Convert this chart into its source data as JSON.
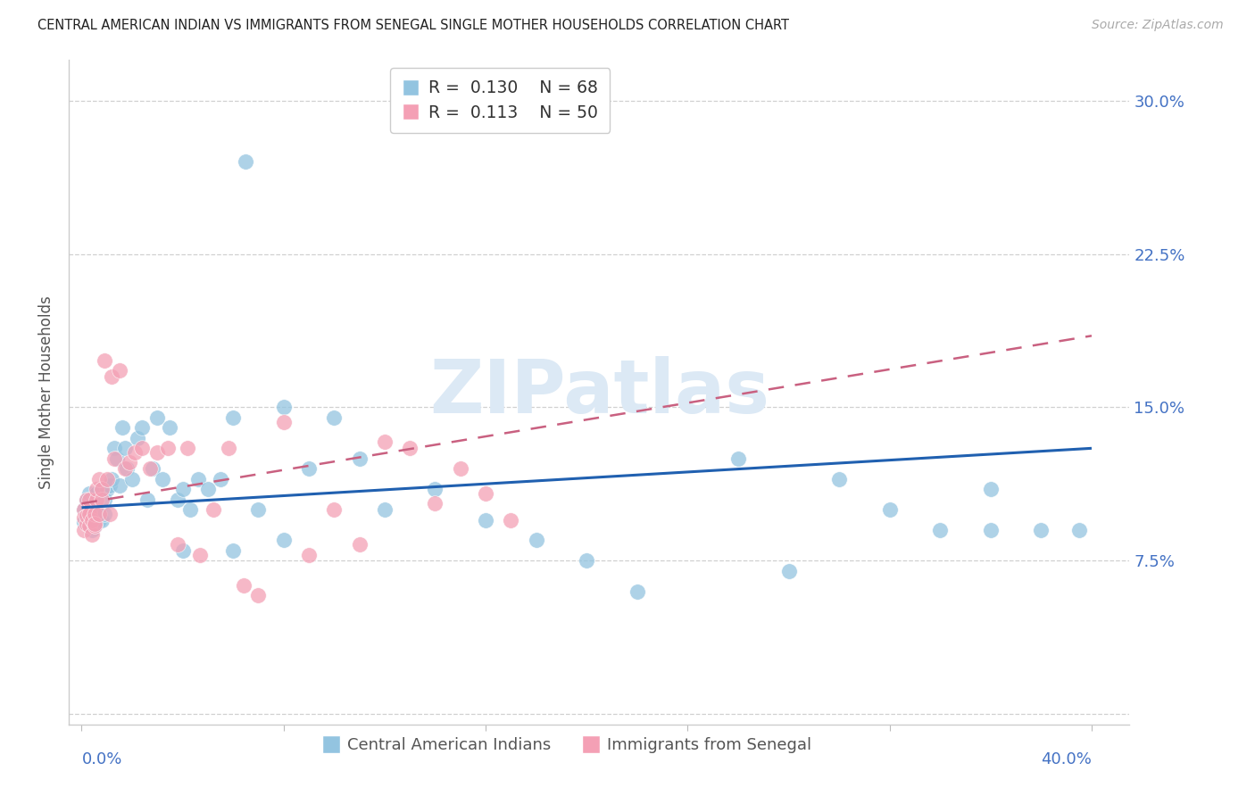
{
  "title": "CENTRAL AMERICAN INDIAN VS IMMIGRANTS FROM SENEGAL SINGLE MOTHER HOUSEHOLDS CORRELATION CHART",
  "source": "Source: ZipAtlas.com",
  "ylabel": "Single Mother Households",
  "ytick_vals": [
    0.0,
    0.075,
    0.15,
    0.225,
    0.3
  ],
  "ytick_labels": [
    "",
    "7.5%",
    "15.0%",
    "22.5%",
    "30.0%"
  ],
  "xtick_vals": [
    0.0,
    0.08,
    0.16,
    0.24,
    0.32,
    0.4
  ],
  "xlim": [
    -0.005,
    0.415
  ],
  "ylim": [
    -0.005,
    0.32
  ],
  "legend1_R": "0.130",
  "legend1_N": "68",
  "legend2_R": "0.113",
  "legend2_N": "50",
  "color_blue": "#93c4e0",
  "color_pink": "#f4a0b5",
  "trendline_blue": "#2060b0",
  "trendline_pink": "#c96080",
  "watermark": "ZIPatlas",
  "blue_trendline_pts": [
    [
      0.0,
      0.101
    ],
    [
      0.4,
      0.13
    ]
  ],
  "pink_trendline_pts": [
    [
      0.0,
      0.103
    ],
    [
      0.4,
      0.185
    ]
  ],
  "blue_x": [
    0.001,
    0.001,
    0.002,
    0.002,
    0.003,
    0.003,
    0.004,
    0.004,
    0.004,
    0.005,
    0.005,
    0.005,
    0.006,
    0.006,
    0.007,
    0.007,
    0.008,
    0.008,
    0.009,
    0.009,
    0.01,
    0.011,
    0.012,
    0.013,
    0.014,
    0.015,
    0.016,
    0.017,
    0.018,
    0.02,
    0.022,
    0.024,
    0.026,
    0.028,
    0.03,
    0.032,
    0.035,
    0.038,
    0.04,
    0.043,
    0.046,
    0.05,
    0.055,
    0.06,
    0.065,
    0.07,
    0.08,
    0.09,
    0.1,
    0.11,
    0.12,
    0.14,
    0.16,
    0.18,
    0.2,
    0.22,
    0.26,
    0.28,
    0.3,
    0.32,
    0.34,
    0.36,
    0.36,
    0.38,
    0.395,
    0.04,
    0.06,
    0.08
  ],
  "blue_y": [
    0.1,
    0.094,
    0.097,
    0.105,
    0.092,
    0.108,
    0.1,
    0.09,
    0.098,
    0.105,
    0.095,
    0.092,
    0.108,
    0.098,
    0.1,
    0.095,
    0.11,
    0.095,
    0.098,
    0.105,
    0.11,
    0.112,
    0.115,
    0.13,
    0.125,
    0.112,
    0.14,
    0.13,
    0.12,
    0.115,
    0.135,
    0.14,
    0.105,
    0.12,
    0.145,
    0.115,
    0.14,
    0.105,
    0.11,
    0.1,
    0.115,
    0.11,
    0.115,
    0.145,
    0.27,
    0.1,
    0.15,
    0.12,
    0.145,
    0.125,
    0.1,
    0.11,
    0.095,
    0.085,
    0.075,
    0.06,
    0.125,
    0.07,
    0.115,
    0.1,
    0.09,
    0.11,
    0.09,
    0.09,
    0.09,
    0.08,
    0.08,
    0.085
  ],
  "pink_x": [
    0.001,
    0.001,
    0.001,
    0.002,
    0.002,
    0.002,
    0.003,
    0.003,
    0.003,
    0.004,
    0.004,
    0.005,
    0.005,
    0.005,
    0.006,
    0.006,
    0.007,
    0.007,
    0.008,
    0.008,
    0.009,
    0.01,
    0.011,
    0.012,
    0.013,
    0.015,
    0.017,
    0.019,
    0.021,
    0.024,
    0.027,
    0.03,
    0.034,
    0.038,
    0.042,
    0.047,
    0.052,
    0.058,
    0.064,
    0.07,
    0.08,
    0.09,
    0.1,
    0.11,
    0.12,
    0.13,
    0.14,
    0.15,
    0.16,
    0.17
  ],
  "pink_y": [
    0.09,
    0.1,
    0.096,
    0.093,
    0.097,
    0.105,
    0.092,
    0.098,
    0.105,
    0.088,
    0.095,
    0.092,
    0.098,
    0.093,
    0.105,
    0.11,
    0.115,
    0.098,
    0.105,
    0.11,
    0.173,
    0.115,
    0.098,
    0.165,
    0.125,
    0.168,
    0.12,
    0.123,
    0.128,
    0.13,
    0.12,
    0.128,
    0.13,
    0.083,
    0.13,
    0.078,
    0.1,
    0.13,
    0.063,
    0.058,
    0.143,
    0.078,
    0.1,
    0.083,
    0.133,
    0.13,
    0.103,
    0.12,
    0.108,
    0.095
  ]
}
